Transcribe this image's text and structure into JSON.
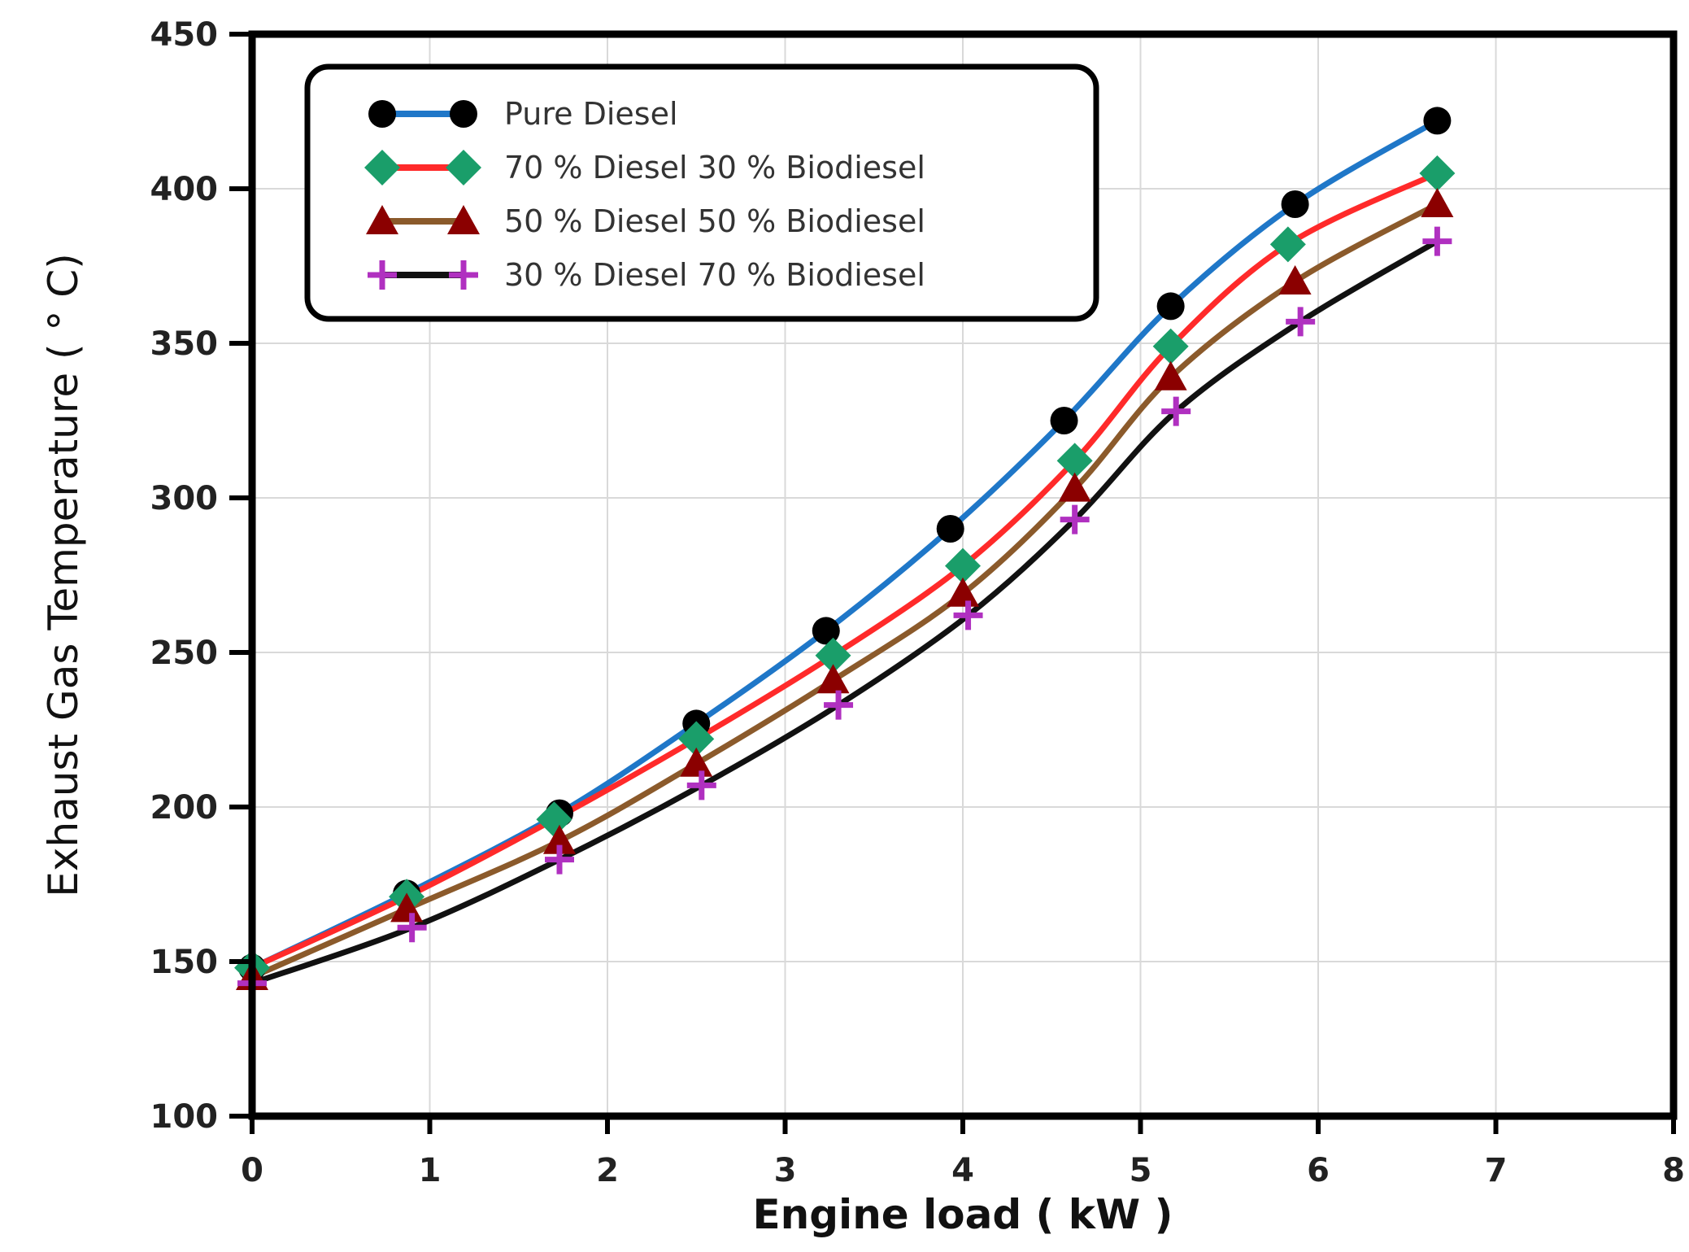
{
  "chart_data": {
    "type": "line",
    "title": "",
    "xlabel": "Engine load ( kW )",
    "ylabel": "Exhaust Gas Temperature ( ° C)",
    "xlim": [
      0,
      8
    ],
    "ylim": [
      100,
      450
    ],
    "xticks": [
      0,
      1,
      2,
      3,
      4,
      5,
      6,
      7,
      8
    ],
    "yticks": [
      100,
      150,
      200,
      250,
      300,
      350,
      400,
      450
    ],
    "xtick_labels": [
      "0",
      "1",
      "2",
      "3",
      "4",
      "5",
      "6",
      "7",
      "8"
    ],
    "ytick_labels": [
      "100",
      "150",
      "200",
      "250",
      "300",
      "350",
      "400",
      "450"
    ],
    "grid": true,
    "legend_position": "top-left",
    "series": [
      {
        "name": "Pure Diesel",
        "line_color": "#1f77c8",
        "marker": "circle",
        "marker_color": "#000000",
        "x": [
          0,
          0.87,
          1.73,
          2.5,
          3.23,
          3.93,
          4.57,
          5.17,
          5.87,
          6.67
        ],
        "y": [
          148,
          172,
          198,
          227,
          257,
          290,
          325,
          362,
          395,
          422
        ]
      },
      {
        "name": "70 % Diesel 30 % Biodiesel",
        "line_color": "#ff2a2a",
        "marker": "diamond",
        "marker_color": "#1a9e6a",
        "x": [
          0,
          0.87,
          1.7,
          2.5,
          3.27,
          4.0,
          4.63,
          5.17,
          5.83,
          6.67
        ],
        "y": [
          148,
          171,
          196,
          222,
          249,
          278,
          312,
          349,
          382,
          405
        ]
      },
      {
        "name": "50 % Diesel 50 % Biodiesel",
        "line_color": "#8b5a2b",
        "marker": "triangle",
        "marker_color": "#8b0000",
        "x": [
          0,
          0.87,
          1.73,
          2.5,
          3.27,
          4.0,
          4.63,
          5.17,
          5.87,
          6.67
        ],
        "y": [
          145,
          167,
          189,
          214,
          241,
          269,
          303,
          339,
          370,
          395
        ]
      },
      {
        "name": "30 % Diesel 70 % Biodiesel",
        "line_color": "#111111",
        "marker": "plus",
        "marker_color": "#b030c0",
        "x": [
          0,
          0.9,
          1.73,
          2.53,
          3.3,
          4.03,
          4.63,
          5.2,
          5.9,
          6.67
        ],
        "y": [
          143,
          161,
          183,
          207,
          233,
          262,
          293,
          328,
          357,
          383
        ]
      }
    ]
  }
}
